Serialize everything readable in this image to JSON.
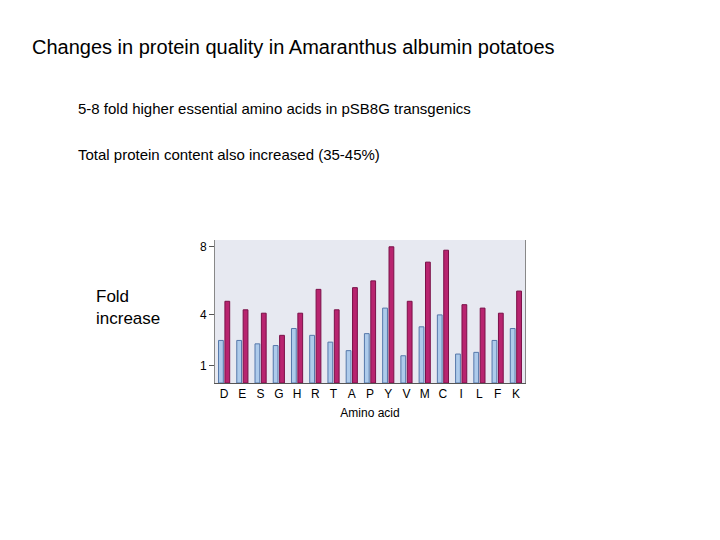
{
  "chart_data": {
    "type": "bar",
    "title": "Changes in protein quality in Amaranthus albumin potatoes",
    "subtitle": [
      "5-8 fold higher essential amino acids in pSB8G transgenics",
      "Total protein content also increased (35-45%)"
    ],
    "xlabel": "Amino acid",
    "ylabel": "Fold increase",
    "categories": [
      "D",
      "E",
      "S",
      "G",
      "H",
      "R",
      "T",
      "A",
      "P",
      "Y",
      "V",
      "M",
      "C",
      "I",
      "L",
      "F",
      "K"
    ],
    "series": [
      {
        "color": "#aecbeb",
        "values": [
          2.5,
          2.5,
          2.3,
          2.2,
          3.2,
          2.8,
          2.4,
          1.9,
          2.9,
          4.4,
          1.6,
          3.3,
          4.0,
          1.7,
          1.8,
          2.5,
          3.2
        ]
      },
      {
        "color": "#b8246f",
        "values": [
          4.8,
          4.3,
          4.1,
          2.8,
          4.1,
          5.5,
          4.3,
          5.6,
          6.0,
          8.0,
          4.8,
          7.1,
          7.8,
          4.6,
          4.4,
          4.1,
          5.4
        ]
      }
    ],
    "ylim": [
      0,
      8.4
    ],
    "yticks": [
      1,
      4,
      8
    ],
    "grid": false
  }
}
